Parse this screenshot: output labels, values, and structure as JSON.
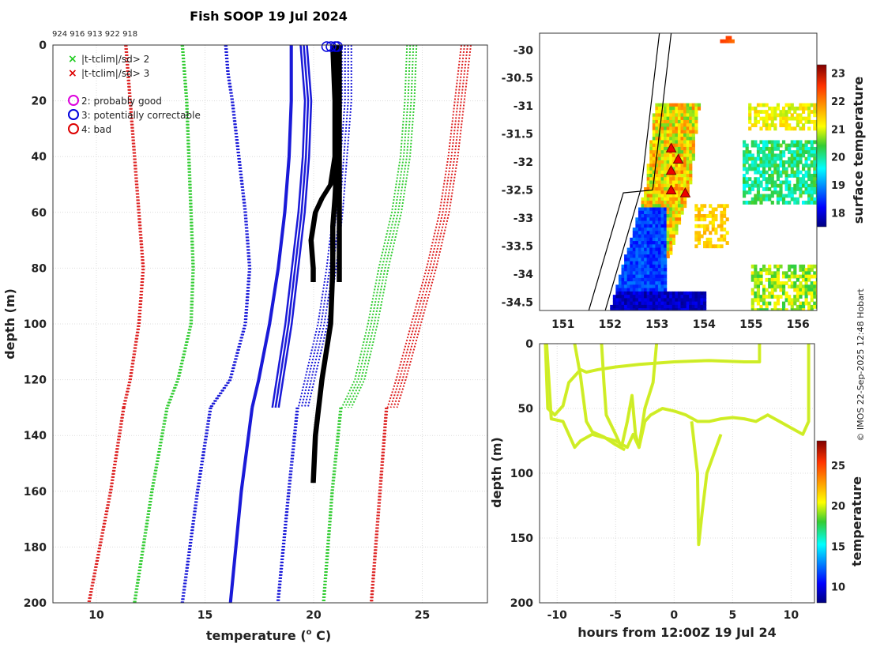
{
  "chart_data": [
    {
      "type": "line",
      "title": "Fish SOOP 19 Jul 2024",
      "drop_ids": "924 916 913 922 918",
      "xlabel": "temperature (",
      "xlabel_sup": "o",
      "xlabel_unit": " C)",
      "ylabel": "depth (m)",
      "xlim": [
        8,
        28
      ],
      "ylim": [
        0,
        200
      ],
      "xticks": [
        10,
        15,
        20,
        25
      ],
      "yticks": [
        0,
        20,
        40,
        60,
        80,
        100,
        120,
        140,
        160,
        180,
        200
      ],
      "legend": {
        "flags": [
          {
            "label": "|t-tclim|/sd> 2",
            "color": "#22cc22"
          },
          {
            "label": "|t-tclim|/sd> 3",
            "color": "#dd0000"
          }
        ],
        "quality": [
          {
            "label": "2: probably good",
            "color": "#dd00dd"
          },
          {
            "label": "3: potentially correctable",
            "color": "#0000dd"
          },
          {
            "label": "4: bad",
            "color": "#dd0000"
          }
        ]
      },
      "climatology": {
        "red_left": [
          [
            0,
            11.4
          ],
          [
            10,
            11.5
          ],
          [
            20,
            11.6
          ],
          [
            40,
            11.8
          ],
          [
            60,
            12.0
          ],
          [
            80,
            12.2
          ],
          [
            100,
            12.0
          ],
          [
            120,
            11.6
          ],
          [
            130,
            11.3
          ]
        ],
        "green_left": [
          [
            0,
            14.0
          ],
          [
            10,
            14.1
          ],
          [
            20,
            14.2
          ],
          [
            40,
            14.3
          ],
          [
            60,
            14.4
          ],
          [
            80,
            14.5
          ],
          [
            100,
            14.4
          ],
          [
            120,
            13.8
          ],
          [
            130,
            13.3
          ]
        ],
        "blue_left": [
          [
            0,
            16.0
          ],
          [
            10,
            16.1
          ],
          [
            20,
            16.3
          ],
          [
            40,
            16.6
          ],
          [
            60,
            16.9
          ],
          [
            80,
            17.1
          ],
          [
            100,
            16.9
          ],
          [
            120,
            16.2
          ],
          [
            130,
            15.3
          ]
        ],
        "blue_solid_left": [
          [
            0,
            19.0
          ],
          [
            10,
            19.0
          ],
          [
            20,
            19.0
          ],
          [
            40,
            18.9
          ],
          [
            60,
            18.7
          ],
          [
            80,
            18.4
          ],
          [
            100,
            18.0
          ],
          [
            120,
            17.5
          ],
          [
            130,
            17.2
          ]
        ],
        "blue_solid_right": [
          [
            0,
            19.4
          ],
          [
            10,
            19.5
          ],
          [
            20,
            19.6
          ],
          [
            40,
            19.5
          ],
          [
            60,
            19.3
          ],
          [
            80,
            19.0
          ],
          [
            100,
            18.7
          ],
          [
            120,
            18.3
          ],
          [
            130,
            18.1
          ]
        ],
        "blue_right": [
          [
            0,
            21.3
          ],
          [
            20,
            21.3
          ],
          [
            40,
            21.1
          ],
          [
            60,
            20.9
          ],
          [
            80,
            20.6
          ],
          [
            100,
            20.2
          ],
          [
            120,
            19.6
          ],
          [
            130,
            19.3
          ]
        ],
        "green_right": [
          [
            0,
            24.3
          ],
          [
            20,
            24.2
          ],
          [
            40,
            24.0
          ],
          [
            60,
            23.6
          ],
          [
            80,
            23.0
          ],
          [
            100,
            22.5
          ],
          [
            120,
            21.9
          ],
          [
            130,
            21.3
          ]
        ],
        "red_right": [
          [
            0,
            26.8
          ],
          [
            20,
            26.5
          ],
          [
            40,
            26.2
          ],
          [
            60,
            25.8
          ],
          [
            80,
            25.2
          ],
          [
            100,
            24.5
          ],
          [
            120,
            23.8
          ],
          [
            130,
            23.4
          ]
        ],
        "blue_deep": [
          [
            130,
            17.2
          ],
          [
            160,
            16.7
          ],
          [
            200,
            16.2
          ]
        ],
        "blue_deep2": [
          [
            130,
            19.3
          ],
          [
            160,
            18.9
          ],
          [
            200,
            18.4
          ]
        ],
        "green_deep": [
          [
            130,
            13.3
          ],
          [
            160,
            12.6
          ],
          [
            200,
            11.8
          ]
        ],
        "green_deep2": [
          [
            130,
            21.3
          ],
          [
            160,
            20.9
          ],
          [
            200,
            20.5
          ]
        ],
        "red_deep": [
          [
            130,
            11.3
          ],
          [
            160,
            10.7
          ],
          [
            200,
            9.7
          ]
        ],
        "red_deep2": [
          [
            130,
            23.4
          ],
          [
            160,
            23.1
          ],
          [
            200,
            22.7
          ]
        ],
        "blue_deep_l": [
          [
            130,
            15.3
          ],
          [
            160,
            14.7
          ],
          [
            200,
            14.0
          ]
        ]
      },
      "profiles": [
        [
          [
            0,
            20.8
          ],
          [
            20,
            20.9
          ],
          [
            40,
            20.9
          ],
          [
            50,
            20.7
          ],
          [
            55,
            20.3
          ],
          [
            60,
            20.0
          ],
          [
            70,
            19.8
          ],
          [
            80,
            19.9
          ],
          [
            85,
            19.9
          ]
        ],
        [
          [
            0,
            21.0
          ],
          [
            20,
            21.0
          ],
          [
            40,
            21.0
          ],
          [
            55,
            20.9
          ],
          [
            65,
            20.8
          ],
          [
            80,
            20.8
          ],
          [
            100,
            20.7
          ],
          [
            120,
            20.3
          ],
          [
            140,
            20.0
          ],
          [
            157,
            19.9
          ]
        ],
        [
          [
            0,
            21.1
          ],
          [
            20,
            21.1
          ],
          [
            40,
            21.1
          ],
          [
            60,
            21.1
          ],
          [
            80,
            21.1
          ],
          [
            85,
            21.1
          ]
        ]
      ],
      "surface_flags": [
        20.6,
        20.8,
        21.0,
        21.1
      ]
    },
    {
      "type": "heatmap",
      "name": "surface temperature map",
      "xlim": [
        150.5,
        156.4
      ],
      "ylim": [
        -34.65,
        -29.7
      ],
      "xticks": [
        151,
        152,
        153,
        154,
        155,
        156
      ],
      "yticks": [
        -30,
        -30.5,
        -31,
        -31.5,
        -32,
        -32.5,
        -33,
        -33.5,
        -34,
        -34.5
      ],
      "colorbar_label": "surface temperature",
      "colorbar_ticks": [
        18,
        19,
        20,
        21,
        22,
        23
      ],
      "colorbar_range": [
        17.5,
        23.3
      ],
      "markers": [
        [
          153.3,
          -31.75
        ],
        [
          153.45,
          -31.95
        ],
        [
          153.3,
          -32.15
        ],
        [
          153.3,
          -32.5
        ],
        [
          153.6,
          -32.55
        ]
      ]
    },
    {
      "type": "scatter",
      "name": "depth vs time",
      "xlabel": "hours from 12:00Z 19 Jul 24",
      "ylabel": "depth (m)",
      "xlim": [
        -11.5,
        12
      ],
      "ylim": [
        0,
        200
      ],
      "xticks": [
        -10,
        -5,
        0,
        5,
        10
      ],
      "yticks": [
        0,
        50,
        100,
        150,
        200
      ],
      "colorbar_label": "temperature",
      "colorbar_ticks": [
        10,
        15,
        20,
        25
      ],
      "colorbar_range": [
        8,
        28
      ]
    }
  ],
  "copyright": "© IMOS 22-Sep-2025 12:48 Hobart"
}
